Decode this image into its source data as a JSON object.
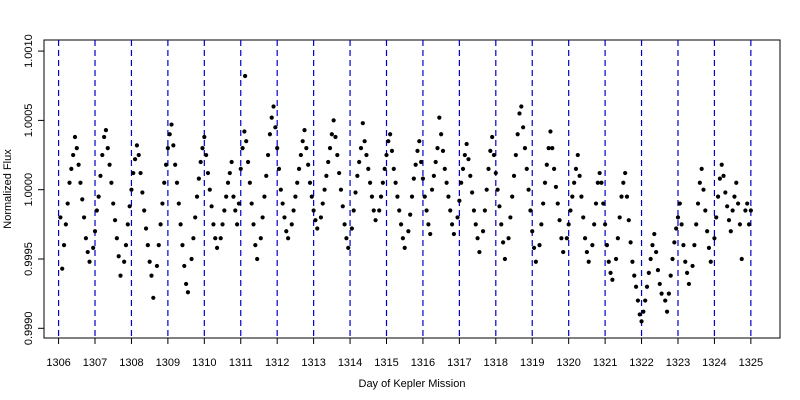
{
  "chart_data": {
    "type": "scatter",
    "xlabel": "Day of Kepler Mission",
    "ylabel": "Normalized Flux",
    "xlim": [
      1305.6,
      1325.8
    ],
    "ylim": [
      0.99893,
      1.00108
    ],
    "x_ticks": [
      1306,
      1307,
      1308,
      1309,
      1310,
      1311,
      1312,
      1313,
      1314,
      1315,
      1316,
      1317,
      1318,
      1319,
      1320,
      1321,
      1322,
      1323,
      1324,
      1325
    ],
    "x_tick_labels": [
      "1306",
      "1307",
      "1308",
      "1309",
      "1310",
      "1311",
      "1312",
      "1313",
      "1314",
      "1315",
      "1316",
      "1317",
      "1318",
      "1319",
      "1320",
      "1321",
      "1322",
      "1323",
      "1324",
      "1325"
    ],
    "y_ticks": [
      0.999,
      0.9995,
      1.0,
      1.0005,
      1.001
    ],
    "y_tick_labels": [
      "0.9990",
      "0.9995",
      "1.0000",
      "1.0005",
      "1.0010"
    ],
    "vertical_lines": [
      1306,
      1307,
      1308,
      1309,
      1310,
      1311,
      1312,
      1313,
      1314,
      1315,
      1316,
      1317,
      1318,
      1319,
      1320,
      1321,
      1322,
      1323,
      1324,
      1325
    ],
    "vertical_line_color": "#0000cc",
    "marker_color": "#000000",
    "grid": false,
    "series_points": [
      [
        1306.05,
        0.9998
      ],
      [
        1306.1,
        0.99943
      ],
      [
        1306.15,
        0.9996
      ],
      [
        1306.2,
        0.99975
      ],
      [
        1306.25,
        0.9999
      ],
      [
        1306.3,
        1.00005
      ],
      [
        1306.35,
        1.00015
      ],
      [
        1306.4,
        1.00025
      ],
      [
        1306.45,
        1.00038
      ],
      [
        1306.5,
        1.0003
      ],
      [
        1306.55,
        1.00018
      ],
      [
        1306.6,
        1.00005
      ],
      [
        1306.65,
        0.99993
      ],
      [
        1306.7,
        0.9998
      ],
      [
        1306.75,
        0.99965
      ],
      [
        1306.8,
        0.99955
      ],
      [
        1306.85,
        0.99948
      ],
      [
        1306.95,
        0.99958
      ],
      [
        1307.0,
        0.9997
      ],
      [
        1307.05,
        0.99985
      ],
      [
        1307.1,
        0.99995
      ],
      [
        1307.15,
        1.0001
      ],
      [
        1307.2,
        1.00025
      ],
      [
        1307.25,
        1.00038
      ],
      [
        1307.3,
        1.00043
      ],
      [
        1307.35,
        1.0003
      ],
      [
        1307.4,
        1.00018
      ],
      [
        1307.45,
        1.00005
      ],
      [
        1307.5,
        0.9999
      ],
      [
        1307.55,
        0.99978
      ],
      [
        1307.6,
        0.99965
      ],
      [
        1307.65,
        0.99952
      ],
      [
        1307.7,
        0.99938
      ],
      [
        1307.8,
        0.99948
      ],
      [
        1307.85,
        0.9996
      ],
      [
        1307.9,
        0.99975
      ],
      [
        1307.95,
        0.99988
      ],
      [
        1308.0,
        1.0
      ],
      [
        1308.05,
        1.00012
      ],
      [
        1308.1,
        1.00022
      ],
      [
        1308.15,
        1.00032
      ],
      [
        1308.2,
        1.00025
      ],
      [
        1308.25,
        1.00012
      ],
      [
        1308.3,
        0.99998
      ],
      [
        1308.35,
        0.99985
      ],
      [
        1308.4,
        0.99972
      ],
      [
        1308.45,
        0.9996
      ],
      [
        1308.5,
        0.99948
      ],
      [
        1308.55,
        0.99938
      ],
      [
        1308.6,
        0.99922
      ],
      [
        1308.7,
        0.99945
      ],
      [
        1308.75,
        0.9996
      ],
      [
        1308.8,
        0.99975
      ],
      [
        1308.85,
        0.9999
      ],
      [
        1308.9,
        1.00005
      ],
      [
        1308.95,
        1.00018
      ],
      [
        1309.0,
        1.0003
      ],
      [
        1309.05,
        1.0004
      ],
      [
        1309.1,
        1.00047
      ],
      [
        1309.15,
        1.00032
      ],
      [
        1309.2,
        1.00018
      ],
      [
        1309.25,
        1.00005
      ],
      [
        1309.3,
        0.9999
      ],
      [
        1309.35,
        0.99975
      ],
      [
        1309.4,
        0.9996
      ],
      [
        1309.45,
        0.99945
      ],
      [
        1309.5,
        0.99932
      ],
      [
        1309.55,
        0.99926
      ],
      [
        1309.65,
        0.9995
      ],
      [
        1309.7,
        0.99965
      ],
      [
        1309.75,
        0.9998
      ],
      [
        1309.8,
        0.99995
      ],
      [
        1309.85,
        1.00008
      ],
      [
        1309.9,
        1.0002
      ],
      [
        1309.95,
        1.0003
      ],
      [
        1310.0,
        1.00038
      ],
      [
        1310.05,
        1.00025
      ],
      [
        1310.1,
        1.00012
      ],
      [
        1310.15,
        1.0
      ],
      [
        1310.2,
        0.99988
      ],
      [
        1310.25,
        0.99975
      ],
      [
        1310.3,
        0.99965
      ],
      [
        1310.35,
        0.99958
      ],
      [
        1310.45,
        0.99965
      ],
      [
        1310.5,
        0.99975
      ],
      [
        1310.55,
        0.99985
      ],
      [
        1310.6,
        0.99995
      ],
      [
        1310.65,
        1.00005
      ],
      [
        1310.7,
        1.00012
      ],
      [
        1310.75,
        1.0002
      ],
      [
        1310.8,
        0.99995
      ],
      [
        1310.85,
        0.99985
      ],
      [
        1310.9,
        0.99975
      ],
      [
        1310.95,
        0.9999
      ],
      [
        1311.0,
        1.00015
      ],
      [
        1311.05,
        1.0003
      ],
      [
        1311.1,
        1.00042
      ],
      [
        1311.12,
        1.00082
      ],
      [
        1311.15,
        1.00035
      ],
      [
        1311.2,
        1.0002
      ],
      [
        1311.25,
        1.00005
      ],
      [
        1311.3,
        0.9999
      ],
      [
        1311.35,
        0.99975
      ],
      [
        1311.4,
        0.9996
      ],
      [
        1311.45,
        0.9995
      ],
      [
        1311.55,
        0.99965
      ],
      [
        1311.6,
        0.9998
      ],
      [
        1311.65,
        0.99995
      ],
      [
        1311.7,
        1.0001
      ],
      [
        1311.75,
        1.00025
      ],
      [
        1311.8,
        1.0004
      ],
      [
        1311.85,
        1.00052
      ],
      [
        1311.9,
        1.0006
      ],
      [
        1311.95,
        1.00045
      ],
      [
        1312.0,
        1.0003
      ],
      [
        1312.05,
        1.00015
      ],
      [
        1312.1,
        1.0
      ],
      [
        1312.15,
        0.9999
      ],
      [
        1312.2,
        0.9998
      ],
      [
        1312.25,
        0.9997
      ],
      [
        1312.3,
        0.99965
      ],
      [
        1312.4,
        0.99975
      ],
      [
        1312.45,
        0.99985
      ],
      [
        1312.5,
        0.99995
      ],
      [
        1312.55,
        1.00005
      ],
      [
        1312.6,
        1.00015
      ],
      [
        1312.65,
        1.00025
      ],
      [
        1312.7,
        1.00035
      ],
      [
        1312.75,
        1.00043
      ],
      [
        1312.8,
        1.0003
      ],
      [
        1312.85,
        1.00018
      ],
      [
        1312.9,
        1.00005
      ],
      [
        1312.95,
        0.99995
      ],
      [
        1313.0,
        0.99985
      ],
      [
        1313.05,
        0.99978
      ],
      [
        1313.1,
        0.99972
      ],
      [
        1313.2,
        0.9998
      ],
      [
        1313.25,
        0.9999
      ],
      [
        1313.3,
        1.0
      ],
      [
        1313.35,
        1.0001
      ],
      [
        1313.4,
        1.0002
      ],
      [
        1313.45,
        1.0003
      ],
      [
        1313.5,
        1.0004
      ],
      [
        1313.55,
        1.0005
      ],
      [
        1313.6,
        1.00038
      ],
      [
        1313.65,
        1.00025
      ],
      [
        1313.7,
        1.00012
      ],
      [
        1313.75,
        1.0
      ],
      [
        1313.8,
        0.99988
      ],
      [
        1313.85,
        0.99975
      ],
      [
        1313.9,
        0.99965
      ],
      [
        1313.95,
        0.99958
      ],
      [
        1314.05,
        0.99972
      ],
      [
        1314.1,
        0.99985
      ],
      [
        1314.15,
        0.99998
      ],
      [
        1314.2,
        1.0001
      ],
      [
        1314.25,
        1.0002
      ],
      [
        1314.3,
        1.0003
      ],
      [
        1314.35,
        1.00048
      ],
      [
        1314.4,
        1.00035
      ],
      [
        1314.45,
        1.00025
      ],
      [
        1314.5,
        1.00015
      ],
      [
        1314.55,
        1.00005
      ],
      [
        1314.6,
        0.99995
      ],
      [
        1314.65,
        0.99985
      ],
      [
        1314.7,
        0.99978
      ],
      [
        1314.8,
        0.99985
      ],
      [
        1314.85,
        0.99995
      ],
      [
        1314.9,
        1.00005
      ],
      [
        1314.95,
        1.00015
      ],
      [
        1315.0,
        1.00025
      ],
      [
        1315.05,
        1.00035
      ],
      [
        1315.1,
        1.0004
      ],
      [
        1315.15,
        1.00028
      ],
      [
        1315.2,
        1.00015
      ],
      [
        1315.25,
        1.00005
      ],
      [
        1315.3,
        0.99995
      ],
      [
        1315.35,
        0.99985
      ],
      [
        1315.4,
        0.99975
      ],
      [
        1315.45,
        0.99965
      ],
      [
        1315.5,
        0.99958
      ],
      [
        1315.6,
        0.9997
      ],
      [
        1315.65,
        0.99982
      ],
      [
        1315.7,
        0.99995
      ],
      [
        1315.75,
        1.00008
      ],
      [
        1315.8,
        1.00018
      ],
      [
        1315.85,
        1.00028
      ],
      [
        1315.9,
        1.00035
      ],
      [
        1315.95,
        1.0002
      ],
      [
        1316.0,
        1.00008
      ],
      [
        1316.05,
        0.99995
      ],
      [
        1316.1,
        0.99985
      ],
      [
        1316.15,
        0.99975
      ],
      [
        1316.2,
        0.99968
      ],
      [
        1316.25,
        1.0
      ],
      [
        1316.3,
        1.0001
      ],
      [
        1316.35,
        1.0002
      ],
      [
        1316.4,
        1.0003
      ],
      [
        1316.45,
        1.00052
      ],
      [
        1316.5,
        1.0004
      ],
      [
        1316.55,
        1.00028
      ],
      [
        1316.6,
        1.00015
      ],
      [
        1316.65,
        1.00005
      ],
      [
        1316.7,
        0.99995
      ],
      [
        1316.75,
        0.99985
      ],
      [
        1316.8,
        0.99975
      ],
      [
        1316.85,
        0.99968
      ],
      [
        1316.95,
        0.9998
      ],
      [
        1317.0,
        0.99992
      ],
      [
        1317.05,
        1.00005
      ],
      [
        1317.1,
        1.00015
      ],
      [
        1317.15,
        1.00025
      ],
      [
        1317.2,
        1.00033
      ],
      [
        1317.25,
        1.00022
      ],
      [
        1317.3,
        1.0001
      ],
      [
        1317.35,
        0.99998
      ],
      [
        1317.4,
        0.99985
      ],
      [
        1317.45,
        0.99975
      ],
      [
        1317.5,
        0.99965
      ],
      [
        1317.55,
        0.99955
      ],
      [
        1317.65,
        0.9997
      ],
      [
        1317.7,
        0.99985
      ],
      [
        1317.75,
        1.0
      ],
      [
        1317.8,
        1.00015
      ],
      [
        1317.85,
        1.00028
      ],
      [
        1317.9,
        1.00038
      ],
      [
        1317.95,
        1.00025
      ],
      [
        1318.0,
        1.00012
      ],
      [
        1318.05,
        1.0
      ],
      [
        1318.1,
        0.99988
      ],
      [
        1318.15,
        0.99975
      ],
      [
        1318.2,
        0.99962
      ],
      [
        1318.25,
        0.9995
      ],
      [
        1318.35,
        0.99965
      ],
      [
        1318.4,
        0.9998
      ],
      [
        1318.45,
        0.99995
      ],
      [
        1318.5,
        1.0001
      ],
      [
        1318.55,
        1.00025
      ],
      [
        1318.6,
        1.0004
      ],
      [
        1318.65,
        1.00055
      ],
      [
        1318.7,
        1.0006
      ],
      [
        1318.75,
        1.00045
      ],
      [
        1318.8,
        1.0003
      ],
      [
        1318.85,
        1.00015
      ],
      [
        1318.9,
        1.0
      ],
      [
        1318.95,
        0.99985
      ],
      [
        1319.0,
        0.9997
      ],
      [
        1319.05,
        0.99958
      ],
      [
        1319.1,
        0.99948
      ],
      [
        1319.2,
        0.9996
      ],
      [
        1319.25,
        0.99975
      ],
      [
        1319.3,
        0.9999
      ],
      [
        1319.35,
        1.00005
      ],
      [
        1319.4,
        1.00018
      ],
      [
        1319.45,
        1.0003
      ],
      [
        1319.5,
        1.00042
      ],
      [
        1319.55,
        1.0003
      ],
      [
        1319.6,
        1.00015
      ],
      [
        1319.65,
        1.00002
      ],
      [
        1319.7,
        0.9999
      ],
      [
        1319.75,
        0.99978
      ],
      [
        1319.8,
        0.99965
      ],
      [
        1319.85,
        0.99955
      ],
      [
        1319.95,
        0.99965
      ],
      [
        1320.0,
        0.99975
      ],
      [
        1320.05,
        0.99985
      ],
      [
        1320.1,
        0.99995
      ],
      [
        1320.15,
        1.00005
      ],
      [
        1320.2,
        1.00015
      ],
      [
        1320.25,
        1.00025
      ],
      [
        1320.3,
        1.0001
      ],
      [
        1320.35,
        0.99995
      ],
      [
        1320.4,
        0.9998
      ],
      [
        1320.45,
        0.99965
      ],
      [
        1320.5,
        0.99955
      ],
      [
        1320.55,
        0.99948
      ],
      [
        1320.65,
        0.9996
      ],
      [
        1320.7,
        0.99975
      ],
      [
        1320.75,
        0.9999
      ],
      [
        1320.8,
        1.00005
      ],
      [
        1320.85,
        1.00012
      ],
      [
        1320.9,
        1.00005
      ],
      [
        1320.95,
        0.9999
      ],
      [
        1321.0,
        0.99975
      ],
      [
        1321.05,
        0.9996
      ],
      [
        1321.1,
        0.99948
      ],
      [
        1321.15,
        0.9994
      ],
      [
        1321.2,
        0.99935
      ],
      [
        1321.3,
        0.9995
      ],
      [
        1321.35,
        0.99965
      ],
      [
        1321.4,
        0.9998
      ],
      [
        1321.45,
        0.99995
      ],
      [
        1321.5,
        1.00005
      ],
      [
        1321.55,
        1.00012
      ],
      [
        1321.6,
        0.99995
      ],
      [
        1321.65,
        0.99978
      ],
      [
        1321.7,
        0.99962
      ],
      [
        1321.75,
        0.99948
      ],
      [
        1321.8,
        0.99938
      ],
      [
        1321.85,
        0.9993
      ],
      [
        1321.9,
        0.9992
      ],
      [
        1321.95,
        0.9991
      ],
      [
        1322.0,
        0.99905
      ],
      [
        1322.05,
        0.99912
      ],
      [
        1322.1,
        0.9992
      ],
      [
        1322.15,
        0.9993
      ],
      [
        1322.2,
        0.9994
      ],
      [
        1322.25,
        0.9995
      ],
      [
        1322.3,
        0.9996
      ],
      [
        1322.35,
        0.99968
      ],
      [
        1322.4,
        0.99955
      ],
      [
        1322.45,
        0.99942
      ],
      [
        1322.5,
        0.99932
      ],
      [
        1322.55,
        0.99925
      ],
      [
        1322.65,
        0.9992
      ],
      [
        1322.7,
        0.99912
      ],
      [
        1322.75,
        0.99925
      ],
      [
        1322.8,
        0.99938
      ],
      [
        1322.85,
        0.9995
      ],
      [
        1322.9,
        0.99962
      ],
      [
        1322.95,
        0.99972
      ],
      [
        1323.0,
        0.9998
      ],
      [
        1323.05,
        0.9999
      ],
      [
        1323.1,
        0.99975
      ],
      [
        1323.15,
        0.9996
      ],
      [
        1323.2,
        0.99948
      ],
      [
        1323.25,
        0.9994
      ],
      [
        1323.3,
        0.99932
      ],
      [
        1323.4,
        0.99945
      ],
      [
        1323.45,
        0.9996
      ],
      [
        1323.5,
        0.99975
      ],
      [
        1323.55,
        0.9999
      ],
      [
        1323.6,
        1.00005
      ],
      [
        1323.65,
        1.00015
      ],
      [
        1323.7,
        1.0
      ],
      [
        1323.75,
        0.99985
      ],
      [
        1323.8,
        0.9997
      ],
      [
        1323.85,
        0.99958
      ],
      [
        1323.9,
        0.99948
      ],
      [
        1324.0,
        0.99965
      ],
      [
        1324.05,
        0.9998
      ],
      [
        1324.1,
        0.99995
      ],
      [
        1324.15,
        1.00008
      ],
      [
        1324.2,
        1.00018
      ],
      [
        1324.25,
        1.0001
      ],
      [
        1324.3,
        0.99998
      ],
      [
        1324.35,
        0.99988
      ],
      [
        1324.4,
        0.99978
      ],
      [
        1324.45,
        0.9997
      ],
      [
        1324.5,
        0.99985
      ],
      [
        1324.55,
        0.99995
      ],
      [
        1324.6,
        1.00005
      ],
      [
        1324.65,
        0.9999
      ],
      [
        1324.7,
        0.99975
      ],
      [
        1324.75,
        0.9995
      ],
      [
        1324.85,
        0.99985
      ],
      [
        1324.9,
        0.9999
      ],
      [
        1324.95,
        0.99975
      ],
      [
        1325.0,
        0.99985
      ]
    ]
  }
}
